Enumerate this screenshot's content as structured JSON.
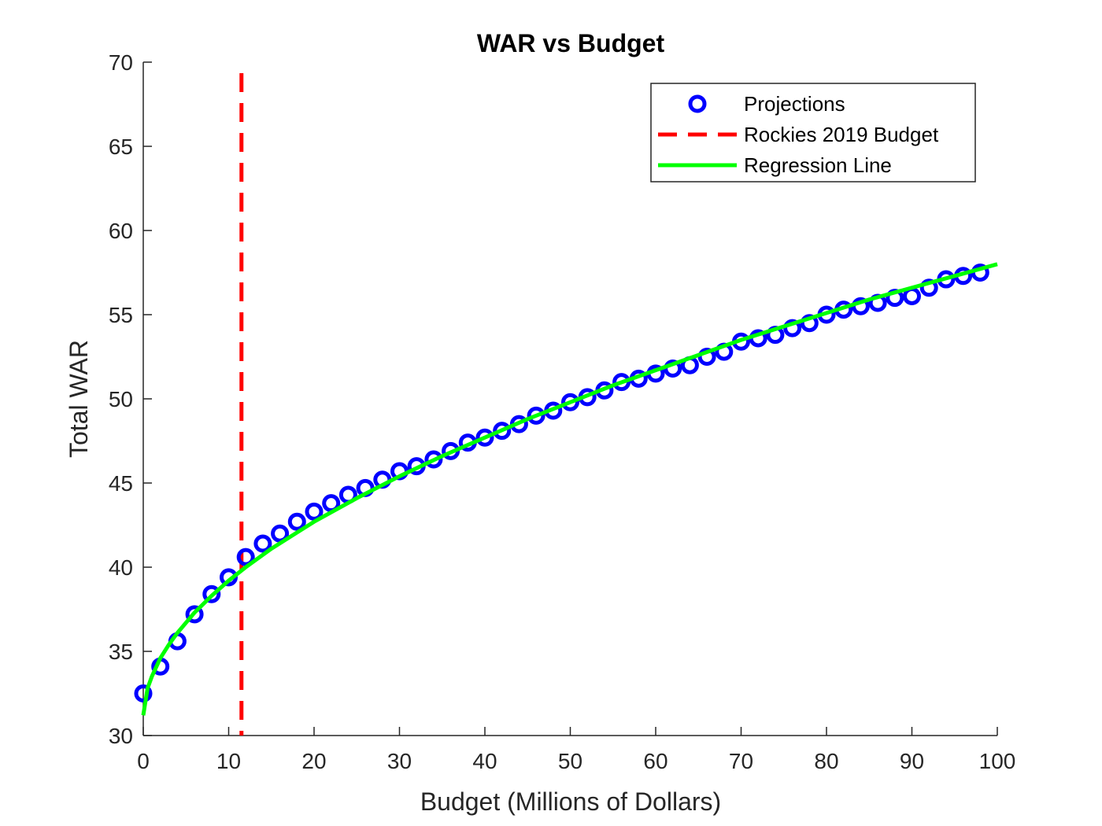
{
  "chart_data": {
    "type": "scatter",
    "title": "WAR vs Budget",
    "xlabel": "Budget (Millions of Dollars)",
    "ylabel": "Total WAR",
    "xlim": [
      0,
      100
    ],
    "ylim": [
      30,
      70
    ],
    "xticks": [
      0,
      10,
      20,
      30,
      40,
      50,
      60,
      70,
      80,
      90,
      100
    ],
    "yticks": [
      30,
      35,
      40,
      45,
      50,
      55,
      60,
      65,
      70
    ],
    "grid": false,
    "legend_position": "top-right",
    "legend": [
      {
        "label": "Projections",
        "style": "marker-circle",
        "color": "#0000ff"
      },
      {
        "label": "Rockies 2019 Budget",
        "style": "dashed-line",
        "color": "#ff0000"
      },
      {
        "label": "Regression Line",
        "style": "solid-line",
        "color": "#00ff00"
      }
    ],
    "series": [
      {
        "name": "Projections",
        "kind": "scatter",
        "color": "#0000ff",
        "x": [
          0,
          2,
          4,
          6,
          8,
          10,
          12,
          14,
          16,
          18,
          20,
          22,
          24,
          26,
          28,
          30,
          32,
          34,
          36,
          38,
          40,
          42,
          44,
          46,
          48,
          50,
          52,
          54,
          56,
          58,
          60,
          62,
          64,
          66,
          68,
          70,
          72,
          74,
          76,
          78,
          80,
          82,
          84,
          86,
          88,
          90,
          92,
          94,
          96,
          98
        ],
        "y": [
          32.5,
          34.1,
          35.6,
          37.2,
          38.4,
          39.4,
          40.6,
          41.4,
          42.0,
          42.7,
          43.3,
          43.8,
          44.3,
          44.7,
          45.2,
          45.7,
          46.0,
          46.4,
          46.9,
          47.4,
          47.7,
          48.1,
          48.5,
          49.0,
          49.3,
          49.8,
          50.1,
          50.5,
          51.0,
          51.2,
          51.5,
          51.8,
          52.0,
          52.5,
          52.8,
          53.4,
          53.6,
          53.8,
          54.2,
          54.5,
          55.0,
          55.3,
          55.5,
          55.7,
          56.0,
          56.1,
          56.6,
          57.1,
          57.3,
          57.5
        ]
      },
      {
        "name": "Rockies 2019 Budget",
        "kind": "vline",
        "color": "#ff0000",
        "x": 11.5,
        "y_range": [
          30,
          70
        ]
      },
      {
        "name": "Regression Line",
        "kind": "line",
        "color": "#00ff00",
        "x": [
          0,
          0.5,
          1,
          2,
          3,
          4,
          5,
          6,
          8,
          10,
          12,
          15,
          20,
          25,
          30,
          35,
          40,
          45,
          50,
          55,
          60,
          65,
          70,
          75,
          80,
          85,
          90,
          95,
          100
        ],
        "y": [
          31.2,
          32.8,
          33.5,
          34.6,
          35.4,
          36.1,
          36.7,
          37.3,
          38.3,
          39.2,
          40.0,
          41.1,
          42.7,
          44.1,
          45.4,
          46.6,
          47.7,
          48.8,
          49.8,
          50.8,
          51.7,
          52.6,
          53.5,
          54.3,
          55.1,
          55.9,
          56.6,
          57.3,
          58.0
        ]
      }
    ]
  }
}
